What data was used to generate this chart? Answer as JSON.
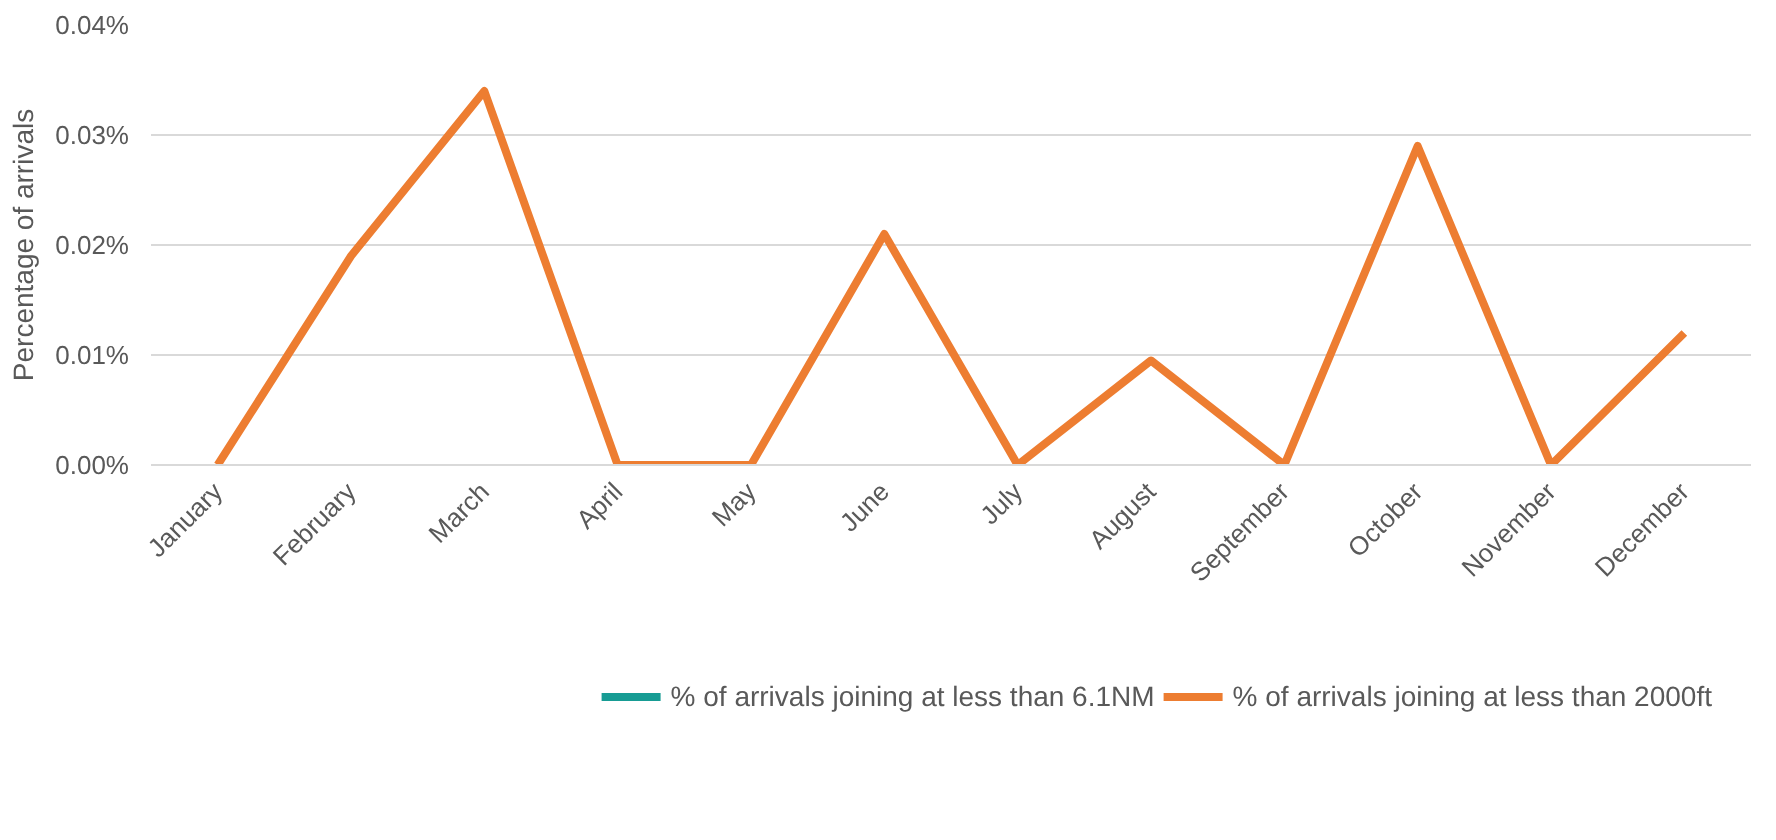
{
  "chart_data": {
    "type": "line",
    "ylabel": "Percentage of arrivals",
    "categories": [
      "January",
      "February",
      "March",
      "April",
      "May",
      "June",
      "July",
      "August",
      "September",
      "October",
      "November",
      "December"
    ],
    "series": [
      {
        "name": "% of arrivals joining at less than 6.1NM",
        "color": "#179c94",
        "values": [
          null,
          null,
          null,
          null,
          null,
          null,
          null,
          null,
          null,
          null,
          null,
          null
        ]
      },
      {
        "name": "% of arrivals joining at less than 2000ft",
        "color": "#ed7d31",
        "values": [
          0,
          0.019,
          0.034,
          0,
          0,
          0.021,
          0,
          0.0095,
          0,
          0.029,
          0,
          0.012
        ]
      }
    ],
    "ylim": [
      0,
      0.04
    ],
    "yticks": [
      {
        "value": 0,
        "label": "0.00%"
      },
      {
        "value": 0.01,
        "label": "0.01%"
      },
      {
        "value": 0.02,
        "label": "0.02%"
      },
      {
        "value": 0.03,
        "label": "0.03%"
      },
      {
        "value": 0.04,
        "label": "0.04%"
      }
    ],
    "grid": "y",
    "legend": "bottom",
    "marker": "none",
    "line_style": "solid"
  }
}
